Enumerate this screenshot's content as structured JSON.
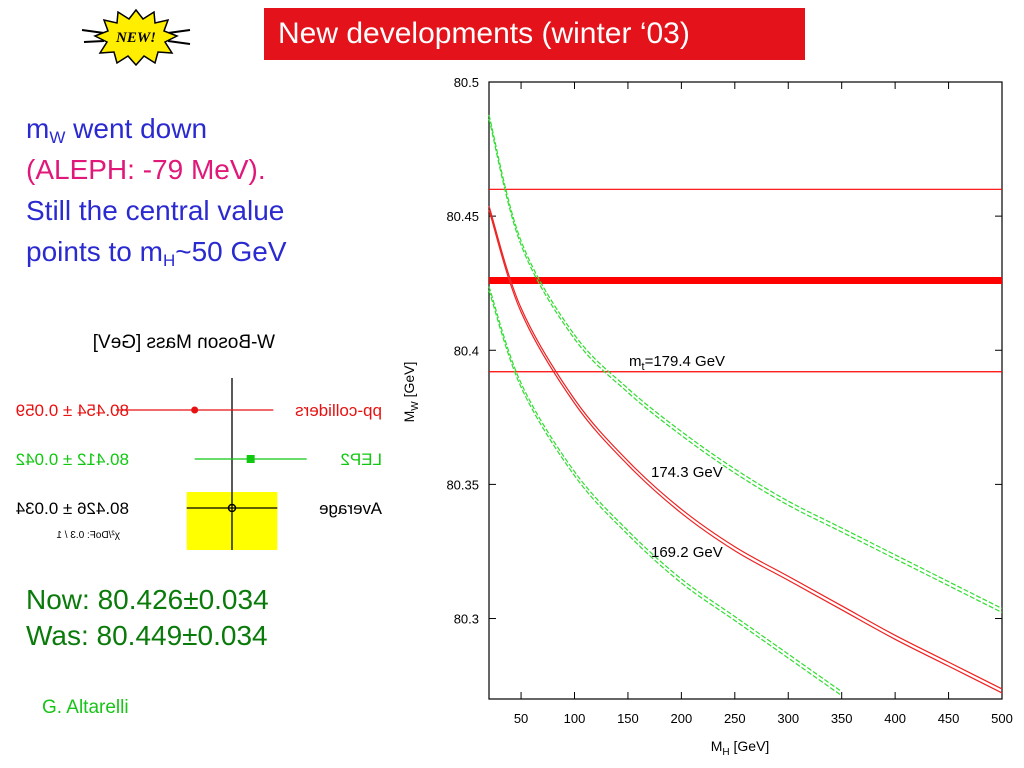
{
  "slide": {
    "title": "New developments (winter ‘03)",
    "badge_text": "NEW!",
    "note": {
      "l1_a": "m",
      "l1_sub": "W",
      "l1_b": " went down",
      "l2": "(ALEPH: -79 MeV).",
      "l3": "Still the central value",
      "l4_a": "points to m",
      "l4_sub": "H",
      "l4_b": "~50 GeV"
    },
    "now_label": "Now: 80.426±0.034",
    "was_label": "Was:  80.449±0.034",
    "author": "G. Altarelli",
    "colors": {
      "title_bg": "#e4121a",
      "note_blue": "#2a2ad0",
      "note_pink": "#e0187a",
      "green_text": "#0a7a0a",
      "author_green": "#18c418",
      "badge_yellow": "#ffee00"
    }
  },
  "chart_data": [
    {
      "type": "scatter",
      "title": "W-Boson Mass  [GeV]",
      "mirrored": true,
      "series": [
        {
          "name": "pp-colliders",
          "value": 80.454,
          "error": 0.059,
          "label": "80.454 ± 0.059",
          "color": "#e81010"
        },
        {
          "name": "LEP2",
          "value": 80.412,
          "error": 0.042,
          "label": "80.412 ± 0.042",
          "color": "#10c810"
        },
        {
          "name": "Average",
          "value": 80.426,
          "error": 0.034,
          "label": "80.426 ± 0.034",
          "color": "#000000"
        }
      ],
      "annotation": "χ²/DoF: 0.3 / 1",
      "xlim": [
        80.3,
        80.6
      ],
      "band_color": "#ffff00"
    },
    {
      "type": "line",
      "xlabel_main": "M",
      "xlabel_sub": "H",
      "xlabel_unit": " [GeV]",
      "ylabel_main": "M",
      "ylabel_sub": "W",
      "ylabel_unit": " [GeV]",
      "xlim": [
        20,
        500
      ],
      "ylim": [
        80.27,
        80.5
      ],
      "xticks": [
        50,
        100,
        150,
        200,
        250,
        300,
        350,
        400,
        450,
        500
      ],
      "yticks": [
        80.3,
        80.35,
        80.4,
        80.45,
        80.5
      ],
      "ytick_labels": [
        "80.3",
        "80.35",
        "80.4",
        "80.45",
        "80.5"
      ],
      "horizontal_lines": [
        {
          "y": 80.426,
          "kind": "central",
          "color": "#ff0000"
        },
        {
          "y": 80.46,
          "kind": "upper",
          "color": "#ff0000"
        },
        {
          "y": 80.392,
          "kind": "lower",
          "color": "#ff0000"
        }
      ],
      "curves": [
        {
          "top_label": "m",
          "top_label_sub": "t",
          "label": "=179.4 GeV",
          "style": "dashed",
          "color": "#33dd33",
          "x": [
            20,
            50,
            100,
            150,
            200,
            250,
            300,
            350,
            400,
            450,
            500
          ],
          "y": [
            80.487,
            80.44,
            80.405,
            80.385,
            80.369,
            80.355,
            80.343,
            80.333,
            80.323,
            80.313,
            80.303
          ]
        },
        {
          "label": "174.3 GeV",
          "style": "solid",
          "color": "#ee2222",
          "x": [
            20,
            50,
            100,
            150,
            200,
            250,
            300,
            350,
            400,
            450,
            500
          ],
          "y": [
            80.453,
            80.415,
            80.381,
            80.358,
            80.34,
            80.326,
            80.315,
            80.304,
            80.293,
            80.283,
            80.273
          ]
        },
        {
          "label": "169.2 GeV",
          "style": "dashed",
          "color": "#33dd33",
          "x": [
            20,
            50,
            100,
            150,
            200,
            250,
            300,
            350
          ],
          "y": [
            80.423,
            80.387,
            80.354,
            80.332,
            80.314,
            80.3,
            80.286,
            80.272
          ]
        }
      ]
    }
  ]
}
